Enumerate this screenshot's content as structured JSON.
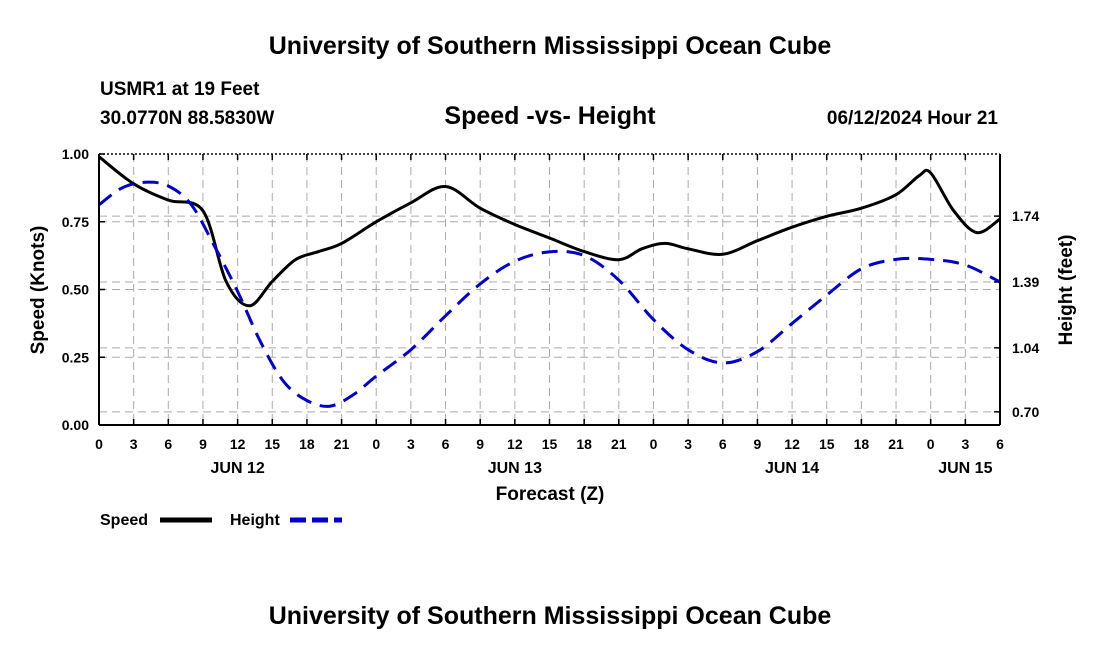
{
  "header": {
    "title": "University of Southern Mississippi Ocean Cube",
    "station": "USMR1 at 19 Feet",
    "coords": "30.0770N  88.5830W",
    "plot_title": "Speed -vs- Height",
    "date": "06/12/2024 Hour 21",
    "footer_title": "University of Southern Mississippi Ocean Cube"
  },
  "legend": {
    "speed_label": "Speed",
    "height_label": "Height"
  },
  "colors": {
    "speed": "#000000",
    "height": "#0000cc",
    "grid": "#aaaaaa"
  },
  "chart_data": {
    "type": "line",
    "title": "Speed -vs- Height",
    "xlabel": "Forecast (Z)",
    "ylabel": "Speed (Knots)",
    "y2label": "Height (feet)",
    "xlim": [
      0,
      78
    ],
    "ylim": [
      0,
      1
    ],
    "y2lim": [
      0.63,
      2.07
    ],
    "x_tick_values": [
      0,
      3,
      6,
      9,
      12,
      15,
      18,
      21,
      24,
      27,
      30,
      33,
      36,
      39,
      42,
      45,
      48,
      51,
      54,
      57,
      60,
      63,
      66,
      69,
      72,
      75,
      78
    ],
    "x_tick_labels": [
      "0",
      "3",
      "6",
      "9",
      "12",
      "15",
      "18",
      "21",
      "0",
      "3",
      "6",
      "9",
      "12",
      "15",
      "18",
      "21",
      "0",
      "3",
      "6",
      "9",
      "12",
      "15",
      "18",
      "21",
      "0",
      "3",
      "6"
    ],
    "y_ticks": [
      0,
      0.25,
      0.5,
      0.75,
      1.0
    ],
    "y_tick_labels": [
      "0.00",
      "0.25",
      "0.50",
      "0.75",
      "1.00"
    ],
    "y2_ticks": [
      0.7,
      1.04,
      1.39,
      1.74
    ],
    "y2_tick_labels": [
      "0.70",
      "1.04",
      "1.39",
      "1.74"
    ],
    "day_labels": [
      {
        "x": 12,
        "label": "JUN 12"
      },
      {
        "x": 36,
        "label": "JUN 13"
      },
      {
        "x": 60,
        "label": "JUN 14"
      },
      {
        "x": 75,
        "label": "JUN 15"
      }
    ],
    "series": [
      {
        "name": "Speed",
        "axis": "left",
        "style": "solid",
        "x": [
          0,
          3,
          6,
          9,
          11,
          13,
          15,
          17,
          19,
          21,
          24,
          27,
          30,
          33,
          36,
          39,
          42,
          45,
          47,
          49,
          51,
          54,
          57,
          60,
          63,
          66,
          69,
          71,
          72,
          74,
          76,
          78
        ],
        "values": [
          0.99,
          0.89,
          0.83,
          0.79,
          0.53,
          0.44,
          0.53,
          0.61,
          0.64,
          0.67,
          0.75,
          0.82,
          0.88,
          0.8,
          0.74,
          0.69,
          0.64,
          0.61,
          0.65,
          0.67,
          0.65,
          0.63,
          0.68,
          0.73,
          0.77,
          0.8,
          0.85,
          0.92,
          0.93,
          0.79,
          0.71,
          0.76
        ]
      },
      {
        "name": "Height",
        "axis": "right",
        "style": "dashed",
        "x": [
          0,
          2,
          4,
          6,
          8,
          10,
          12,
          14,
          16,
          18,
          20,
          22,
          24,
          27,
          30,
          33,
          36,
          39,
          42,
          45,
          48,
          51,
          54,
          57,
          60,
          63,
          66,
          69,
          72,
          75,
          78
        ],
        "values": [
          1.8,
          1.89,
          1.92,
          1.9,
          1.8,
          1.58,
          1.34,
          1.07,
          0.86,
          0.76,
          0.73,
          0.79,
          0.89,
          1.03,
          1.21,
          1.38,
          1.5,
          1.55,
          1.53,
          1.4,
          1.19,
          1.03,
          0.96,
          1.02,
          1.17,
          1.32,
          1.46,
          1.51,
          1.51,
          1.48,
          1.39
        ]
      }
    ]
  }
}
